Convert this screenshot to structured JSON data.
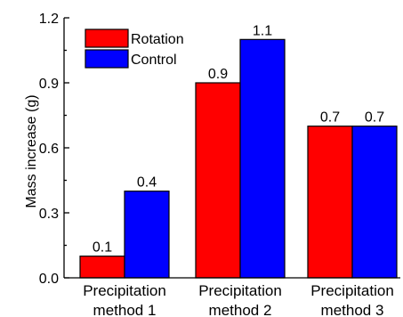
{
  "chart_data": {
    "type": "bar",
    "title": "",
    "xlabel": "",
    "ylabel": "Mass increase (g)",
    "ylim": [
      0,
      1.2
    ],
    "yticks": [
      "0.0",
      "0.3",
      "0.6",
      "0.9",
      "1.2"
    ],
    "categories": [
      [
        "Precipitation",
        "method 1"
      ],
      [
        "Precipitation",
        "method 2"
      ],
      [
        "Precipitation",
        "method 3"
      ]
    ],
    "series": [
      {
        "name": "Rotation",
        "color": "#ff0000",
        "values": [
          0.1,
          0.9,
          0.7
        ],
        "labels": [
          "0.1",
          "0.9",
          "0.7"
        ]
      },
      {
        "name": "Control",
        "color": "#0000ff",
        "values": [
          0.4,
          1.1,
          0.7
        ],
        "labels": [
          "0.4",
          "1.1",
          "0.7"
        ]
      }
    ],
    "grid": false,
    "legend_position": "top-left"
  }
}
